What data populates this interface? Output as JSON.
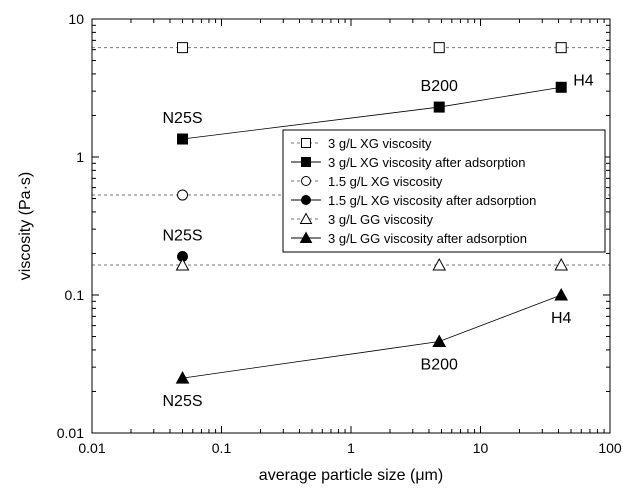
{
  "chart_data": {
    "type": "scatter",
    "xscale": "log",
    "yscale": "log",
    "xlim": [
      0.01,
      100
    ],
    "ylim": [
      0.01,
      10
    ],
    "xlabel": "average particle size (μm)",
    "ylabel": "viscosity (Pa·s)",
    "xticks": [
      "0.01",
      "0.1",
      "1",
      "10",
      "100"
    ],
    "yticks": [
      "0.01",
      "0.1",
      "1",
      "10"
    ],
    "legend_position": "right-middle",
    "series": [
      {
        "name": "3 g/L XG viscosity",
        "marker": "square-open",
        "line": "dashed",
        "x": [
          0.05,
          4.8,
          42
        ],
        "y": [
          6.2,
          6.2,
          6.2
        ],
        "ref_line": 6.2
      },
      {
        "name": "3 g/L XG viscosity after adsorption",
        "marker": "square-filled",
        "line": "solid",
        "x": [
          0.05,
          4.8,
          42
        ],
        "y": [
          1.35,
          2.3,
          3.2
        ]
      },
      {
        "name": "1.5 g/L XG viscosity",
        "marker": "circle-open",
        "line": "dashed",
        "x": [
          0.05
        ],
        "y": [
          0.53
        ],
        "ref_line": 0.53
      },
      {
        "name": "1.5 g/L XG viscosity after adsorption",
        "marker": "circle-filled",
        "line": "solid",
        "x": [
          0.05
        ],
        "y": [
          0.19
        ]
      },
      {
        "name": "3 g/L GG viscosity",
        "marker": "triangle-open",
        "line": "dashed",
        "x": [
          0.05,
          4.8,
          42
        ],
        "y": [
          0.165,
          0.165,
          0.165
        ],
        "ref_line": 0.165
      },
      {
        "name": "3 g/L GG viscosity after adsorption",
        "marker": "triangle-filled",
        "line": "solid",
        "x": [
          0.05,
          4.8,
          42
        ],
        "y": [
          0.025,
          0.046,
          0.1
        ]
      }
    ],
    "annotations": [
      {
        "text": "N25S",
        "x": 0.05,
        "y": 1.35,
        "pos": "above"
      },
      {
        "text": "B200",
        "x": 4.8,
        "y": 2.3,
        "pos": "above"
      },
      {
        "text": "H4",
        "x": 42,
        "y": 3.2,
        "pos": "right"
      },
      {
        "text": "N25S",
        "x": 0.05,
        "y": 0.19,
        "pos": "above"
      },
      {
        "text": "H4",
        "x": 42,
        "y": 0.1,
        "pos": "below"
      },
      {
        "text": "B200",
        "x": 4.8,
        "y": 0.046,
        "pos": "below"
      },
      {
        "text": "N25S",
        "x": 0.05,
        "y": 0.025,
        "pos": "below"
      }
    ]
  }
}
